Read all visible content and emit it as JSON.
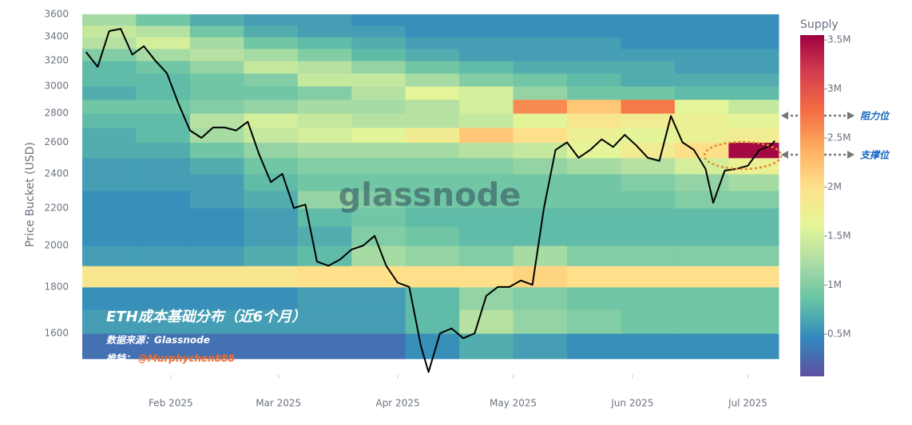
{
  "chart_data": {
    "type": "heatmap",
    "y_label": "Price Bucket (USD)",
    "watermark": "glassnode",
    "title": "ETH成本基础分布（近6个月）",
    "source": "数据来源：Glassnode",
    "credit": {
      "label": "推特：",
      "handle": "@Murphychen888"
    },
    "annotations": [
      "阻力位",
      "支撑位"
    ],
    "log_y": true,
    "grid": true,
    "ylim": [
      1440,
      3600
    ],
    "yticks": [
      1600,
      1800,
      2000,
      2200,
      2400,
      2600,
      2800,
      3000,
      3200,
      3400,
      3600
    ],
    "xlim": [
      "2025-01-09",
      "2025-07-09"
    ],
    "xticks": [
      {
        "value": "2025-02",
        "label": "Feb 2025"
      },
      {
        "value": "2025-03",
        "label": "Mar 2025"
      },
      {
        "value": "2025-04",
        "label": "Apr 2025"
      },
      {
        "value": "2025-05",
        "label": "May 2025"
      },
      {
        "value": "2025-06",
        "label": "Jun 2025"
      },
      {
        "value": "2025-07",
        "label": "Jul 2025"
      }
    ],
    "colorbar": {
      "title": "Supply",
      "lim": [
        0.07,
        3.55
      ],
      "colors": [
        "#5e4fa2",
        "#3288bd",
        "#66c2a5",
        "#abdda4",
        "#e6f598",
        "#fee08b",
        "#fdae61",
        "#f46d43",
        "#d53e4f",
        "#9e0142"
      ],
      "ticks": [
        {
          "value": 0.5,
          "label": "0.5M"
        },
        {
          "value": 1,
          "label": "1M"
        },
        {
          "value": 1.5,
          "label": "1.5M"
        },
        {
          "value": 2,
          "label": "2M"
        },
        {
          "value": 2.5,
          "label": "2.5M"
        },
        {
          "value": 3,
          "label": "3M"
        },
        {
          "value": 3.5,
          "label": "3.5M"
        }
      ]
    },
    "heatmap": {
      "x_edges": [
        "2025-01-09",
        "2025-01-23",
        "2025-02-06",
        "2025-02-20",
        "2025-03-06",
        "2025-03-20",
        "2025-04-03",
        "2025-04-17",
        "2025-05-01",
        "2025-05-15",
        "2025-05-29",
        "2025-06-12",
        "2025-06-26",
        "2025-07-10"
      ],
      "y_edges": [
        1500,
        1600,
        1700,
        1800,
        1900,
        2000,
        2100,
        2200,
        2300,
        2400,
        2500,
        2600,
        2700,
        2800,
        2900,
        3000,
        3100,
        3200,
        3300,
        3400,
        3500,
        3600
      ],
      "values": [
        [
          0.3,
          0.3,
          0.3,
          0.3,
          0.3,
          0.3,
          0.5,
          0.7,
          0.6,
          0.5,
          0.5,
          0.5,
          0.5
        ],
        [
          0.6,
          0.6,
          0.6,
          0.6,
          0.6,
          0.6,
          0.8,
          1.3,
          1.1,
          1.0,
          0.9,
          0.9,
          0.9
        ],
        [
          0.5,
          0.5,
          0.5,
          0.5,
          0.6,
          0.6,
          0.8,
          1.1,
          1.0,
          0.9,
          0.9,
          0.9,
          0.9
        ],
        [
          1.9,
          1.9,
          1.9,
          1.9,
          2.0,
          2.0,
          2.0,
          2.0,
          2.1,
          2.0,
          2.0,
          2.0,
          2.0
        ],
        [
          0.6,
          0.6,
          0.6,
          0.7,
          0.8,
          1.2,
          1.1,
          1.0,
          1.2,
          1.0,
          1.0,
          1.0,
          1.0
        ],
        [
          0.5,
          0.5,
          0.5,
          0.6,
          0.7,
          1.0,
          0.9,
          0.8,
          0.8,
          0.8,
          0.8,
          0.8,
          0.8
        ],
        [
          0.5,
          0.5,
          0.5,
          0.6,
          0.8,
          0.9,
          0.8,
          0.8,
          0.8,
          0.8,
          0.8,
          0.8,
          0.8
        ],
        [
          0.5,
          0.5,
          0.6,
          0.7,
          1.1,
          1.0,
          0.9,
          0.9,
          0.9,
          0.9,
          0.9,
          1.0,
          1.0
        ],
        [
          0.6,
          0.6,
          0.6,
          0.8,
          0.9,
          0.9,
          0.9,
          0.9,
          0.9,
          0.9,
          1.0,
          1.1,
          1.2
        ],
        [
          0.6,
          0.6,
          0.7,
          0.9,
          1.0,
          1.0,
          1.0,
          1.0,
          1.1,
          1.2,
          1.3,
          1.5,
          1.7
        ],
        [
          0.7,
          0.7,
          0.9,
          1.1,
          1.2,
          1.2,
          1.2,
          1.3,
          1.4,
          1.6,
          1.8,
          2.0,
          3.5
        ],
        [
          0.7,
          0.8,
          1.2,
          1.4,
          1.5,
          1.6,
          1.8,
          2.2,
          2.0,
          1.7,
          1.6,
          1.7,
          1.8
        ],
        [
          0.8,
          0.8,
          1.3,
          1.5,
          1.4,
          1.3,
          1.3,
          1.4,
          1.6,
          1.9,
          1.8,
          1.7,
          1.6
        ],
        [
          0.9,
          0.9,
          1.0,
          1.1,
          1.2,
          1.2,
          1.3,
          1.5,
          2.6,
          2.2,
          2.7,
          1.6,
          1.4
        ],
        [
          0.7,
          0.8,
          0.9,
          0.9,
          1.0,
          1.3,
          1.6,
          1.5,
          1.1,
          0.9,
          0.9,
          0.8,
          0.8
        ],
        [
          0.8,
          0.8,
          0.9,
          1.0,
          1.4,
          1.4,
          1.2,
          1.0,
          0.9,
          0.8,
          0.7,
          0.7,
          0.7
        ],
        [
          0.8,
          0.9,
          1.1,
          1.4,
          1.3,
          1.1,
          0.9,
          0.8,
          0.7,
          0.7,
          0.7,
          0.6,
          0.6
        ],
        [
          1.0,
          1.2,
          1.3,
          1.2,
          1.0,
          0.8,
          0.7,
          0.6,
          0.6,
          0.6,
          0.6,
          0.6,
          0.6
        ],
        [
          1.3,
          1.5,
          1.2,
          0.9,
          0.8,
          0.7,
          0.6,
          0.6,
          0.6,
          0.6,
          0.5,
          0.5,
          0.5
        ],
        [
          1.4,
          1.3,
          0.9,
          0.7,
          0.6,
          0.6,
          0.5,
          0.5,
          0.5,
          0.5,
          0.5,
          0.5,
          0.5
        ],
        [
          1.2,
          0.9,
          0.7,
          0.6,
          0.6,
          0.5,
          0.5,
          0.5,
          0.5,
          0.5,
          0.5,
          0.5,
          0.5
        ]
      ]
    },
    "line": {
      "color": "#000000",
      "x": [
        "2025-01-10",
        "2025-01-13",
        "2025-01-16",
        "2025-01-19",
        "2025-01-22",
        "2025-01-25",
        "2025-01-28",
        "2025-01-31",
        "2025-02-03",
        "2025-02-06",
        "2025-02-09",
        "2025-02-12",
        "2025-02-15",
        "2025-02-18",
        "2025-02-21",
        "2025-02-24",
        "2025-02-27",
        "2025-03-02",
        "2025-03-05",
        "2025-03-08",
        "2025-03-11",
        "2025-03-14",
        "2025-03-17",
        "2025-03-20",
        "2025-03-23",
        "2025-03-26",
        "2025-03-29",
        "2025-04-01",
        "2025-04-04",
        "2025-04-07",
        "2025-04-09",
        "2025-04-12",
        "2025-04-15",
        "2025-04-18",
        "2025-04-21",
        "2025-04-24",
        "2025-04-27",
        "2025-04-30",
        "2025-05-03",
        "2025-05-06",
        "2025-05-09",
        "2025-05-12",
        "2025-05-15",
        "2025-05-18",
        "2025-05-21",
        "2025-05-24",
        "2025-05-27",
        "2025-05-30",
        "2025-06-02",
        "2025-06-05",
        "2025-06-08",
        "2025-06-11",
        "2025-06-14",
        "2025-06-17",
        "2025-06-20",
        "2025-06-22",
        "2025-06-25",
        "2025-06-28",
        "2025-07-01",
        "2025-07-04",
        "2025-07-07",
        "2025-07-08"
      ],
      "values": [
        3270,
        3150,
        3450,
        3470,
        3250,
        3320,
        3200,
        3100,
        2870,
        2680,
        2630,
        2700,
        2700,
        2680,
        2740,
        2520,
        2350,
        2400,
        2200,
        2220,
        1920,
        1900,
        1930,
        1980,
        2000,
        2050,
        1900,
        1820,
        1800,
        1550,
        1450,
        1600,
        1620,
        1580,
        1600,
        1760,
        1800,
        1800,
        1830,
        1810,
        2200,
        2550,
        2600,
        2500,
        2550,
        2620,
        2570,
        2650,
        2580,
        2500,
        2480,
        2780,
        2600,
        2550,
        2430,
        2230,
        2420,
        2430,
        2450,
        2550,
        2580,
        2610
      ]
    }
  }
}
